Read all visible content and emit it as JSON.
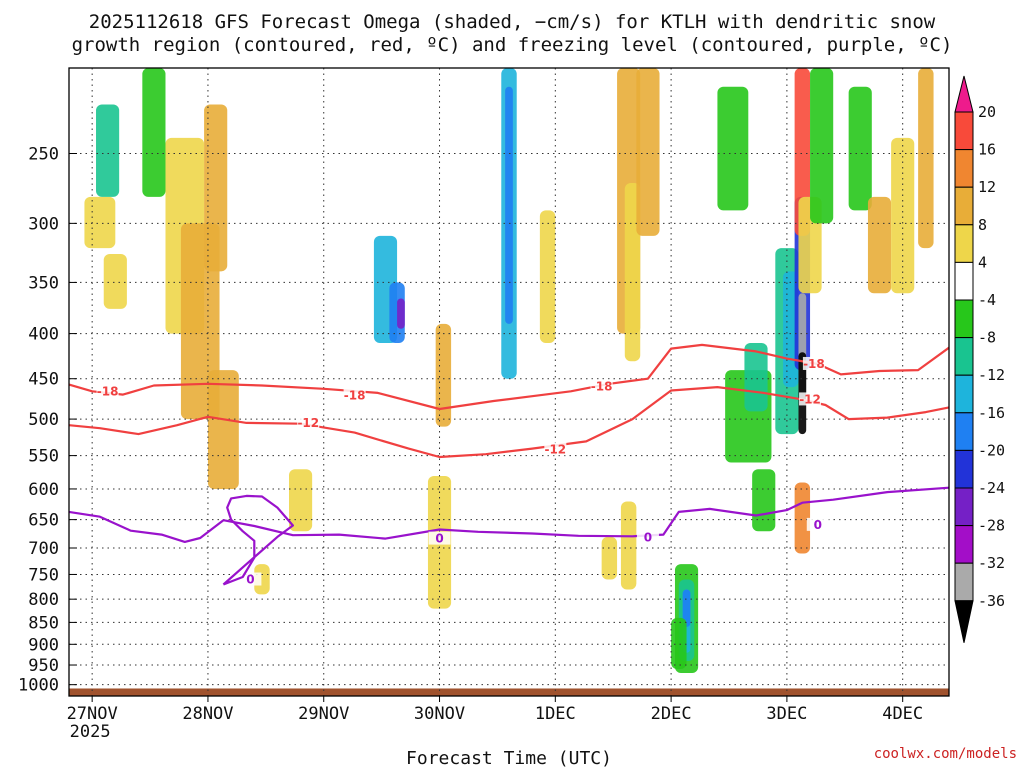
{
  "chart_data": {
    "type": "heatmap",
    "title_line1": "2025112618 GFS Forecast Omega (shaded, −cm/s) for KTLH with dendritic snow",
    "title_line2": "growth region (contoured, red, ºC) and freezing level (contoured, purple, ºC)",
    "xlabel": "Forecast Time (UTC)",
    "ylabel": "",
    "credit": "coolwx.com/models",
    "x_ticks": [
      {
        "label": "27NOV",
        "hour": 6
      },
      {
        "label": "28NOV",
        "hour": 36
      },
      {
        "label": "29NOV",
        "hour": 66
      },
      {
        "label": "30NOV",
        "hour": 96
      },
      {
        "label": "1DEC",
        "hour": 126
      },
      {
        "label": "2DEC",
        "hour": 156
      },
      {
        "label": "3DEC",
        "hour": 186
      },
      {
        "label": "4DEC",
        "hour": 216
      }
    ],
    "x_year_label": "2025",
    "x_range": [
      0,
      228
    ],
    "y_ticks": [
      250,
      300,
      350,
      400,
      450,
      500,
      550,
      600,
      650,
      700,
      750,
      800,
      850,
      900,
      950,
      1000
    ],
    "y_range_hpa": [
      200,
      1030
    ],
    "grid": "dotted",
    "colorbar": {
      "labels": [
        "20",
        "16",
        "12",
        "8",
        "4",
        "-4",
        "-8",
        "-12",
        "-16",
        "-20",
        "-24",
        "-28",
        "-32",
        "-36"
      ],
      "colors": [
        "#ee1b8c",
        "#f84a3a",
        "#f08630",
        "#e8ad38",
        "#eed64a",
        "#ffffff",
        "#27c71b",
        "#19c490",
        "#1eb4dc",
        "#1f80f2",
        "#2233d8",
        "#7520c6",
        "#a30ec8",
        "#aaaaaa",
        "#000000"
      ]
    },
    "series": [
      {
        "name": "-18",
        "color": "#f04040",
        "points": [
          [
            0,
            457
          ],
          [
            6,
            465
          ],
          [
            14,
            469
          ],
          [
            22,
            458
          ],
          [
            36,
            456
          ],
          [
            50,
            458
          ],
          [
            66,
            462
          ],
          [
            80,
            467
          ],
          [
            96,
            487
          ],
          [
            110,
            477
          ],
          [
            120,
            471
          ],
          [
            130,
            465
          ],
          [
            140,
            456
          ],
          [
            150,
            450
          ],
          [
            156,
            416
          ],
          [
            164,
            412
          ],
          [
            178,
            419
          ],
          [
            186,
            427
          ],
          [
            194,
            433
          ],
          [
            200,
            445
          ],
          [
            210,
            441
          ],
          [
            220,
            440
          ],
          [
            228,
            415
          ]
        ],
        "labels": [
          [
            10,
            465
          ],
          [
            74,
            470
          ],
          [
            138,
            459
          ],
          [
            193,
            433
          ]
        ]
      },
      {
        "name": "-12",
        "color": "#f04040",
        "points": [
          [
            0,
            508
          ],
          [
            8,
            512
          ],
          [
            18,
            520
          ],
          [
            28,
            508
          ],
          [
            36,
            497
          ],
          [
            46,
            505
          ],
          [
            60,
            506
          ],
          [
            74,
            518
          ],
          [
            88,
            540
          ],
          [
            96,
            552
          ],
          [
            108,
            548
          ],
          [
            120,
            540
          ],
          [
            134,
            530
          ],
          [
            146,
            500
          ],
          [
            156,
            464
          ],
          [
            168,
            460
          ],
          [
            180,
            467
          ],
          [
            190,
            475
          ],
          [
            196,
            482
          ],
          [
            202,
            500
          ],
          [
            212,
            498
          ],
          [
            222,
            491
          ],
          [
            228,
            485
          ]
        ],
        "labels": [
          [
            62,
            505
          ],
          [
            126,
            541
          ],
          [
            192,
            475
          ]
        ]
      },
      {
        "name": "0",
        "color": "#9912cc",
        "points": [
          [
            0,
            637
          ],
          [
            8,
            645
          ],
          [
            16,
            669
          ],
          [
            24,
            676
          ],
          [
            30,
            689
          ],
          [
            34,
            682
          ],
          [
            40,
            651
          ],
          [
            48,
            661
          ],
          [
            58,
            677
          ],
          [
            70,
            676
          ],
          [
            82,
            683
          ],
          [
            96,
            667
          ],
          [
            106,
            671
          ],
          [
            120,
            674
          ],
          [
            132,
            678
          ],
          [
            146,
            679
          ],
          [
            154,
            676
          ],
          [
            158,
            637
          ],
          [
            166,
            632
          ],
          [
            178,
            643
          ],
          [
            186,
            634
          ],
          [
            190,
            622
          ],
          [
            198,
            617
          ],
          [
            212,
            605
          ],
          [
            228,
            598
          ]
        ],
        "labels": [
          [
            96,
            683
          ],
          [
            150,
            681
          ],
          [
            194,
            659
          ],
          [
            47,
            760
          ]
        ]
      },
      {
        "name": "0-loop",
        "color": "#9912cc",
        "points": [
          [
            40,
            770
          ],
          [
            45,
            755
          ],
          [
            48,
            718
          ],
          [
            48,
            687
          ],
          [
            45,
            670
          ],
          [
            42,
            650
          ],
          [
            41,
            630
          ],
          [
            42,
            615
          ],
          [
            46,
            611
          ],
          [
            50,
            612
          ],
          [
            54,
            630
          ],
          [
            58,
            660
          ],
          [
            54,
            680
          ],
          [
            46,
            730
          ],
          [
            40,
            770
          ]
        ],
        "labels": []
      }
    ]
  }
}
